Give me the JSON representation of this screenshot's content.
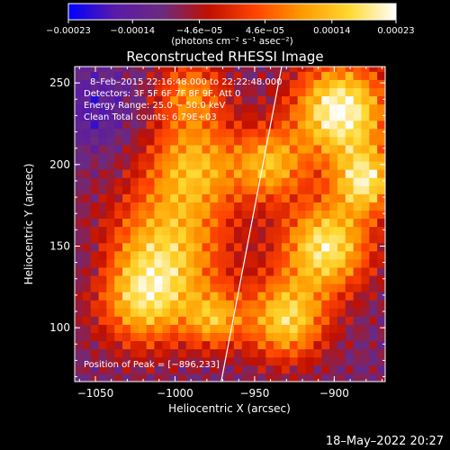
{
  "chart_data": {
    "type": "heatmap",
    "title": "Reconstructed RHESSI Image",
    "xlabel": "Heliocentric X (arcsec)",
    "ylabel": "Heliocentric Y (arcsec)",
    "xlim": [
      -1063,
      -868
    ],
    "ylim": [
      67,
      260
    ],
    "x_ticks": [
      -1050,
      -1000,
      -950,
      -900
    ],
    "y_ticks": [
      100,
      150,
      200,
      250
    ],
    "x_tick_labels": [
      "−1050",
      "−1000",
      "−950",
      "−900"
    ],
    "y_tick_labels": [
      "100",
      "150",
      "200",
      "250"
    ],
    "colorbar": {
      "range": [
        -0.00023,
        0.00023
      ],
      "ticks": [
        -0.00023,
        -0.00014,
        -4.6e-05,
        4.6e-05,
        0.00014,
        0.00023
      ],
      "tick_labels": [
        "−0.00023",
        "−0.00014",
        "−4.6e−05",
        "4.6e−05",
        "0.00014",
        "0.00023"
      ],
      "unit_label": "(photons cm⁻² s⁻¹ asec⁻²)",
      "colors": [
        "#0000ff",
        "#5a1aa8",
        "#6a2b80",
        "#c01000",
        "#ff4400",
        "#ff9a00",
        "#ffd830",
        "#ffffff"
      ]
    },
    "limb_line": {
      "x": [
        -971,
        -933
      ],
      "y": [
        67,
        260
      ]
    },
    "annotations": [
      "8–Feb–2015 22:16:48.000 to 22:22:48.000",
      "Detectors: 3F 5F 6F 7F 8F 9F, Att 0",
      "Energy Range: 25.0 − 50.0 keV",
      "Clean    Total counts: 6.79E+03"
    ],
    "peak_label": "Position of Peak = [−896,233]",
    "peak": [
      -896,
      233
    ],
    "blobs": [
      {
        "x": -1005,
        "y": 148,
        "r": 38,
        "v": 0.00013
      },
      {
        "x": -988,
        "y": 200,
        "r": 30,
        "v": 0.00011
      },
      {
        "x": -1020,
        "y": 115,
        "r": 28,
        "v": 0.0001
      },
      {
        "x": -975,
        "y": 105,
        "r": 18,
        "v": 9e-05
      },
      {
        "x": -990,
        "y": 245,
        "r": 22,
        "v": 7e-05
      },
      {
        "x": -896,
        "y": 233,
        "r": 30,
        "v": 0.00023
      },
      {
        "x": -905,
        "y": 150,
        "r": 28,
        "v": 0.00019
      },
      {
        "x": -930,
        "y": 105,
        "r": 25,
        "v": 0.00016
      },
      {
        "x": -880,
        "y": 190,
        "r": 20,
        "v": 0.00016
      },
      {
        "x": -940,
        "y": 200,
        "r": 22,
        "v": 0.00011
      },
      {
        "x": -1050,
        "y": 235,
        "r": 25,
        "v": -0.00016
      },
      {
        "x": -1055,
        "y": 140,
        "r": 18,
        "v": -0.00012
      }
    ]
  },
  "footer": {
    "timestamp": "18–May–2022 20:27"
  }
}
